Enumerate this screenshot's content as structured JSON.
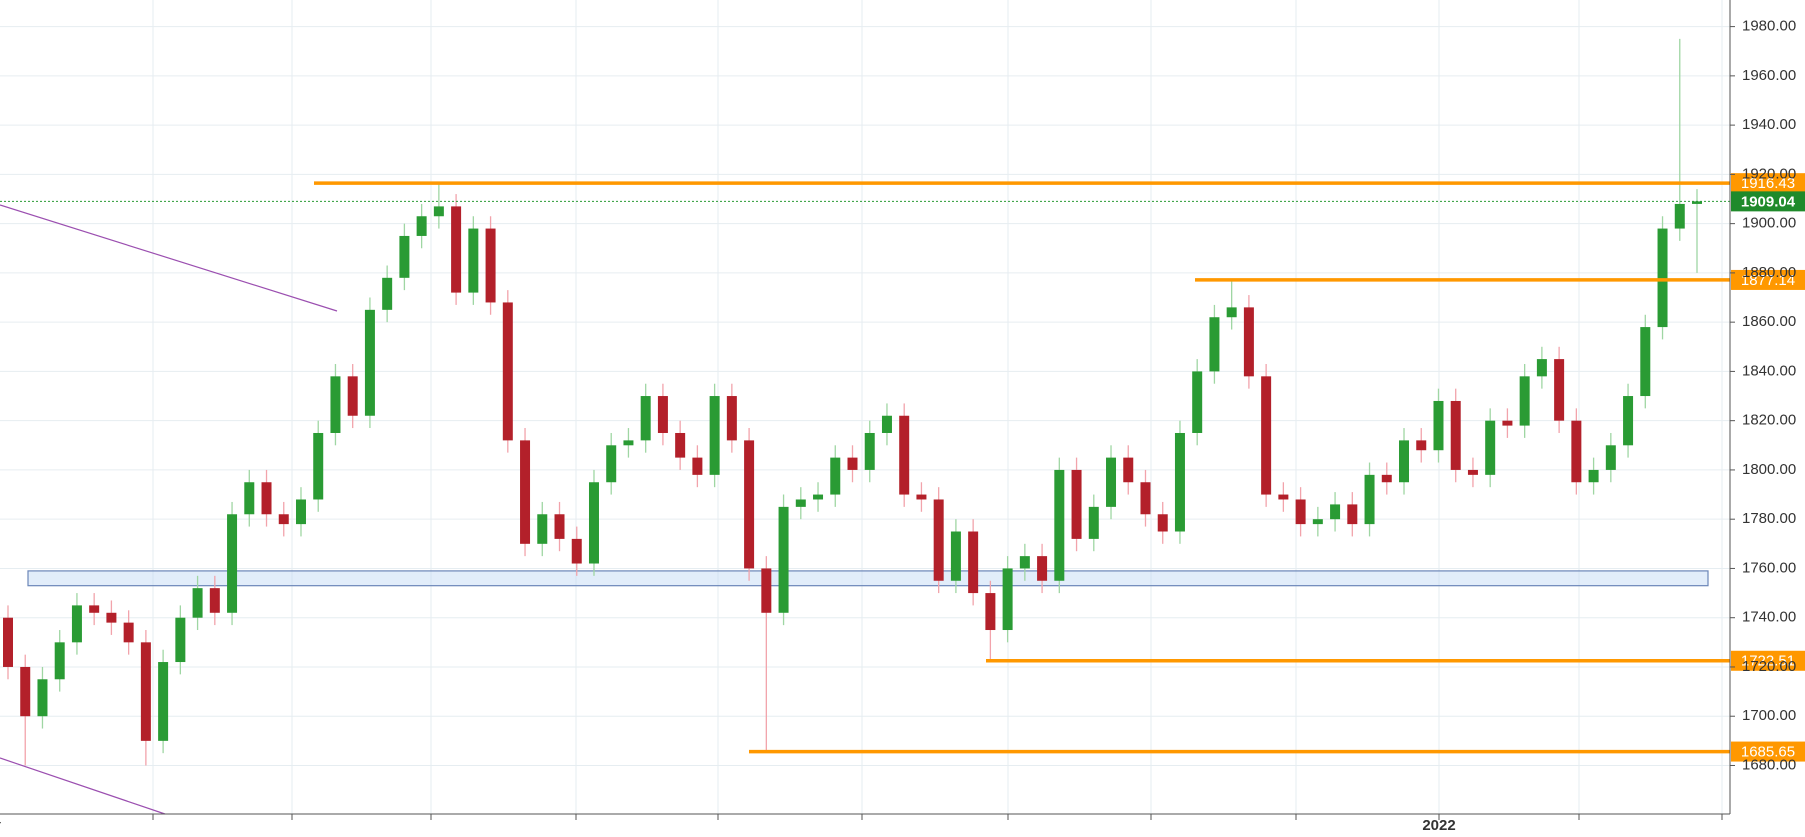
{
  "chart_data": {
    "type": "candlestick",
    "series": [
      {
        "open": [
          1740,
          1720,
          1700,
          1715,
          1730,
          1745,
          1742,
          1738,
          1730,
          1690,
          1722,
          1740,
          1752,
          1742,
          1782,
          1795,
          1782,
          1778,
          1788,
          1815,
          1838,
          1822,
          1865,
          1878,
          1895,
          1903,
          1907,
          1872,
          1898,
          1868,
          1812,
          1770,
          1782,
          1772,
          1762,
          1795,
          1810,
          1812,
          1830,
          1815,
          1805,
          1798,
          1830,
          1812,
          1760,
          1742,
          1785,
          1788,
          1790,
          1805,
          1800,
          1815,
          1822,
          1790,
          1788,
          1755,
          1775,
          1750,
          1735,
          1760,
          1765,
          1755,
          1800,
          1772,
          1785,
          1805,
          1795,
          1782,
          1775,
          1815,
          1840,
          1862,
          1866,
          1838,
          1790,
          1788,
          1778,
          1780,
          1786,
          1778,
          1798,
          1795,
          1812,
          1808,
          1828,
          1800,
          1798,
          1820,
          1818,
          1838,
          1845,
          1820,
          1795,
          1800,
          1810,
          1830,
          1858,
          1898,
          1908
        ],
        "high": [
          1745,
          1725,
          1720,
          1735,
          1750,
          1750,
          1747,
          1743,
          1735,
          1727,
          1745,
          1757,
          1757,
          1787,
          1800,
          1800,
          1787,
          1793,
          1820,
          1843,
          1843,
          1870,
          1883,
          1900,
          1908,
          1916.43,
          1912,
          1903,
          1903,
          1873,
          1817,
          1787,
          1787,
          1777,
          1800,
          1815,
          1817,
          1835,
          1835,
          1820,
          1810,
          1835,
          1835,
          1817,
          1765,
          1790,
          1793,
          1795,
          1810,
          1810,
          1820,
          1827,
          1827,
          1795,
          1793,
          1780,
          1780,
          1755,
          1765,
          1770,
          1770,
          1805,
          1805,
          1790,
          1810,
          1810,
          1800,
          1787,
          1820,
          1845,
          1867,
          1877.14,
          1871,
          1843,
          1795,
          1793,
          1785,
          1791,
          1791,
          1803,
          1803,
          1817,
          1817,
          1833,
          1833,
          1805,
          1825,
          1825,
          1843,
          1850,
          1850,
          1825,
          1805,
          1815,
          1835,
          1863,
          1903,
          1975,
          1914
        ],
        "low": [
          1715,
          1680,
          1695,
          1710,
          1725,
          1737,
          1733,
          1725,
          1680,
          1685,
          1717,
          1735,
          1737,
          1737,
          1777,
          1777,
          1773,
          1773,
          1783,
          1810,
          1817,
          1817,
          1860,
          1873,
          1890,
          1898,
          1867,
          1867,
          1863,
          1807,
          1765,
          1765,
          1767,
          1757,
          1757,
          1790,
          1805,
          1807,
          1810,
          1800,
          1793,
          1793,
          1807,
          1755,
          1685.65,
          1737,
          1780,
          1783,
          1785,
          1795,
          1795,
          1810,
          1785,
          1783,
          1750,
          1750,
          1745,
          1722.51,
          1730,
          1755,
          1750,
          1750,
          1767,
          1767,
          1780,
          1790,
          1777,
          1770,
          1770,
          1810,
          1835,
          1857,
          1833,
          1785,
          1783,
          1773,
          1773,
          1775,
          1773,
          1773,
          1790,
          1790,
          1803,
          1803,
          1795,
          1793,
          1793,
          1813,
          1813,
          1833,
          1815,
          1790,
          1790,
          1795,
          1805,
          1825,
          1853,
          1893,
          1880
        ],
        "close": [
          1720,
          1700,
          1715,
          1730,
          1745,
          1742,
          1738,
          1730,
          1690,
          1722,
          1740,
          1752,
          1742,
          1782,
          1795,
          1782,
          1778,
          1788,
          1815,
          1838,
          1822,
          1865,
          1878,
          1895,
          1903,
          1907,
          1872,
          1898,
          1868,
          1812,
          1770,
          1782,
          1772,
          1762,
          1795,
          1810,
          1812,
          1830,
          1815,
          1805,
          1798,
          1830,
          1812,
          1760,
          1742,
          1785,
          1788,
          1790,
          1805,
          1800,
          1815,
          1822,
          1790,
          1788,
          1755,
          1775,
          1750,
          1735,
          1760,
          1765,
          1755,
          1800,
          1772,
          1785,
          1805,
          1795,
          1782,
          1775,
          1815,
          1840,
          1862,
          1866,
          1838,
          1790,
          1788,
          1778,
          1780,
          1786,
          1778,
          1798,
          1795,
          1812,
          1808,
          1828,
          1800,
          1798,
          1820,
          1818,
          1838,
          1845,
          1820,
          1795,
          1800,
          1810,
          1830,
          1858,
          1898,
          1908,
          1909.04
        ]
      }
    ],
    "up_color": "#2a9b34",
    "down_color": "#b3202a",
    "ylim": [
      1660.3,
      1990.8
    ],
    "yticks": [
      {
        "value": 1680,
        "label": "1680.00"
      },
      {
        "value": 1700,
        "label": "1700.00"
      },
      {
        "value": 1720,
        "label": "1720.00"
      },
      {
        "value": 1740,
        "label": "1740.00"
      },
      {
        "value": 1760,
        "label": "1760.00"
      },
      {
        "value": 1780,
        "label": "1780.00"
      },
      {
        "value": 1800,
        "label": "1800.00"
      },
      {
        "value": 1820,
        "label": "1820.00"
      },
      {
        "value": 1840,
        "label": "1840.00"
      },
      {
        "value": 1860,
        "label": "1860.00"
      },
      {
        "value": 1880,
        "label": "1880.00"
      },
      {
        "value": 1900,
        "label": "1900.00"
      },
      {
        "value": 1920,
        "label": "1920.00"
      },
      {
        "value": 1940,
        "label": "1940.00"
      },
      {
        "value": 1960,
        "label": "1960.00"
      },
      {
        "value": 1980,
        "label": "1980.00"
      }
    ],
    "x_labels": [
      "r",
      "2022"
    ],
    "levels": [
      1916.43,
      1877.14,
      1722.51,
      1685.65
    ],
    "level_color": "#ff9800",
    "last_price": 1909.04,
    "support_zone": {
      "low": 1753,
      "high": 1759
    },
    "grid": true
  }
}
